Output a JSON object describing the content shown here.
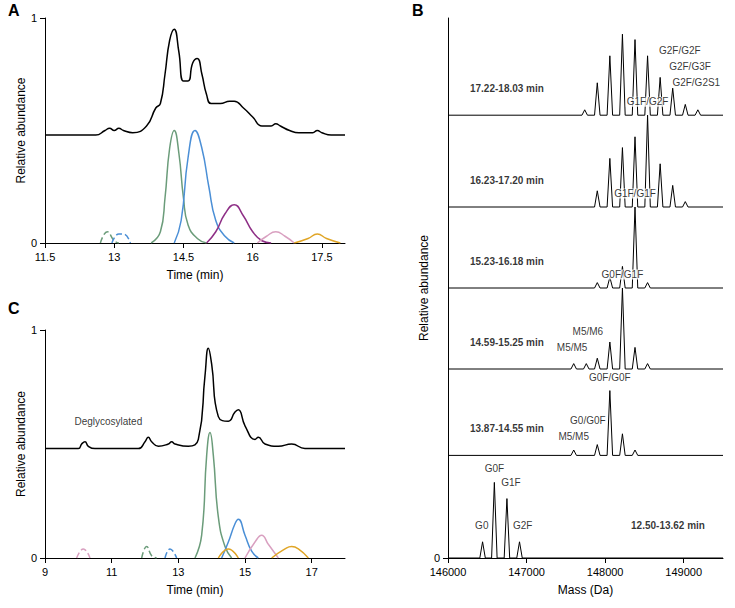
{
  "chart_data": [
    {
      "type": "line",
      "panel": "A",
      "x_label": "Time (min)",
      "y_label": "Relative abundance",
      "xlim": [
        11.5,
        18
      ],
      "xticks": [
        11.5,
        13,
        14.5,
        16,
        17.5
      ],
      "ylim": [
        0,
        1
      ],
      "yticks": [
        0,
        1
      ],
      "grid": false,
      "series": [
        {
          "color": "#000000",
          "line_style": "solid",
          "x": [
            11.5,
            12.0,
            12.6,
            12.8,
            12.9,
            13.0,
            13.1,
            13.2,
            13.4,
            13.7,
            13.9,
            14.0,
            14.1,
            14.2,
            14.3,
            14.4,
            14.5,
            14.6,
            14.7,
            14.8,
            14.9,
            15.0,
            15.1,
            15.3,
            15.5,
            15.6,
            15.8,
            16.0,
            16.2,
            16.4,
            16.5,
            16.6,
            16.8,
            17.0,
            17.3,
            17.4,
            17.5,
            17.7,
            18.0
          ],
          "values": [
            0.48,
            0.48,
            0.48,
            0.5,
            0.51,
            0.5,
            0.51,
            0.5,
            0.49,
            0.52,
            0.6,
            0.62,
            0.75,
            0.9,
            0.95,
            0.85,
            0.72,
            0.72,
            0.8,
            0.82,
            0.75,
            0.66,
            0.62,
            0.62,
            0.63,
            0.63,
            0.6,
            0.56,
            0.52,
            0.52,
            0.53,
            0.52,
            0.5,
            0.49,
            0.49,
            0.5,
            0.49,
            0.48,
            0.48
          ]
        },
        {
          "color": "#6b9c7a",
          "line_style": "solid",
          "x": [
            13.8,
            14.0,
            14.1,
            14.2,
            14.3,
            14.4,
            14.5,
            14.6,
            14.8,
            15.0
          ],
          "values": [
            0,
            0.05,
            0.2,
            0.42,
            0.5,
            0.4,
            0.2,
            0.08,
            0.02,
            0
          ]
        },
        {
          "color": "#4b8fd6",
          "line_style": "solid",
          "x": [
            14.3,
            14.45,
            14.6,
            14.75,
            14.9,
            15.05,
            15.2,
            15.4,
            15.6
          ],
          "values": [
            0,
            0.1,
            0.38,
            0.5,
            0.42,
            0.25,
            0.1,
            0.03,
            0
          ]
        },
        {
          "color": "#8e2f86",
          "line_style": "solid",
          "x": [
            15.0,
            15.2,
            15.4,
            15.6,
            15.8,
            16.0,
            16.2,
            16.4
          ],
          "values": [
            0,
            0.05,
            0.13,
            0.17,
            0.12,
            0.05,
            0.01,
            0
          ]
        },
        {
          "color": "#d9a0c0",
          "line_style": "solid",
          "x": [
            16.1,
            16.3,
            16.5,
            16.7,
            16.9
          ],
          "values": [
            0,
            0.03,
            0.05,
            0.03,
            0
          ]
        },
        {
          "color": "#e0a526",
          "line_style": "solid",
          "x": [
            16.9,
            17.2,
            17.4,
            17.6,
            17.9
          ],
          "values": [
            0,
            0.02,
            0.04,
            0.02,
            0
          ]
        },
        {
          "color": "#6b9c7a",
          "line_style": "dashed",
          "x": [
            12.7,
            12.85,
            13.0,
            13.1
          ],
          "values": [
            0,
            0.05,
            0.01,
            0
          ]
        },
        {
          "color": "#4b8fd6",
          "line_style": "dashed",
          "x": [
            12.95,
            13.1,
            13.2,
            13.35
          ],
          "values": [
            0,
            0.04,
            0.04,
            0
          ]
        }
      ]
    },
    {
      "type": "spectrum",
      "panel": "B",
      "x_label": "Mass (Da)",
      "y_label": "Relative abundance",
      "xlim": [
        146000,
        149500
      ],
      "xticks": [
        146000,
        147000,
        148000,
        149000
      ],
      "ylim": [
        0,
        1
      ],
      "yticks": [
        0
      ],
      "grid": false,
      "series": [
        {
          "label": "12.50-13.62 min",
          "label_x": 148800,
          "label_y": 0.06,
          "color": "#000000",
          "baseline": 0,
          "peaks": [
            [
              146440,
              0.03
            ],
            [
              146590,
              0.14
            ],
            [
              146750,
              0.11
            ],
            [
              146910,
              0.03
            ]
          ],
          "annotations": [
            {
              "text": "G0",
              "x": 146430,
              "y": 0.06
            },
            {
              "text": "G0F",
              "x": 146590,
              "y": 0.165
            },
            {
              "text": "G1F",
              "x": 146800,
              "y": 0.14
            },
            {
              "text": "G2F",
              "x": 146950,
              "y": 0.06
            }
          ]
        },
        {
          "label": "13.87-14.55 min",
          "label_x": 146750,
          "label_y": 0.24,
          "color": "#000000",
          "baseline": 0.19,
          "peaks": [
            [
              147600,
              0.2
            ],
            [
              147900,
              0.21
            ],
            [
              148060,
              0.31
            ],
            [
              148220,
              0.23
            ],
            [
              148380,
              0.2
            ]
          ],
          "annotations": [
            {
              "text": "M5/M5",
              "x": 147600,
              "y": 0.225
            },
            {
              "text": "G0/G0F",
              "x": 147780,
              "y": 0.255
            },
            {
              "text": "G0F/G0F",
              "x": 148060,
              "y": 0.335
            }
          ]
        },
        {
          "label": "14.59-15.25 min",
          "label_x": 146750,
          "label_y": 0.4,
          "color": "#000000",
          "baseline": 0.35,
          "peaks": [
            [
              147600,
              0.36
            ],
            [
              147760,
              0.36
            ],
            [
              147900,
              0.37
            ],
            [
              148060,
              0.4
            ],
            [
              148220,
              0.5
            ],
            [
              148380,
              0.39
            ],
            [
              148540,
              0.36
            ]
          ],
          "annotations": [
            {
              "text": "M5/M5",
              "x": 147580,
              "y": 0.39
            },
            {
              "text": "M5/M6",
              "x": 147780,
              "y": 0.42
            },
            {
              "text": "G0F/G1F",
              "x": 148220,
              "y": 0.525
            }
          ]
        },
        {
          "label": "15.23-16.18 min",
          "label_x": 146750,
          "label_y": 0.55,
          "color": "#000000",
          "baseline": 0.5,
          "peaks": [
            [
              147900,
              0.51
            ],
            [
              148060,
              0.52
            ],
            [
              148220,
              0.54
            ],
            [
              148380,
              0.65
            ],
            [
              148540,
              0.51
            ]
          ],
          "annotations": [
            {
              "text": "G1F/G1F",
              "x": 148380,
              "y": 0.675
            }
          ]
        },
        {
          "label": "16.23-17.20 min",
          "label_x": 146750,
          "label_y": 0.7,
          "color": "#000000",
          "baseline": 0.65,
          "peaks": [
            [
              147900,
              0.68
            ],
            [
              148060,
              0.74
            ],
            [
              148220,
              0.76
            ],
            [
              148380,
              0.78
            ],
            [
              148540,
              0.82
            ],
            [
              148700,
              0.73
            ],
            [
              148860,
              0.69
            ],
            [
              149020,
              0.66
            ]
          ],
          "annotations": [
            {
              "text": "G1F/G2F",
              "x": 148540,
              "y": 0.845
            }
          ]
        },
        {
          "label": "17.22-18.03 min",
          "label_x": 146750,
          "label_y": 0.87,
          "color": "#000000",
          "baseline": 0.82,
          "peaks": [
            [
              147740,
              0.83
            ],
            [
              147900,
              0.88
            ],
            [
              148060,
              0.93
            ],
            [
              148220,
              0.97
            ],
            [
              148380,
              0.96
            ],
            [
              148540,
              0.93
            ],
            [
              148700,
              0.89
            ],
            [
              148860,
              0.87
            ],
            [
              149020,
              0.84
            ],
            [
              149180,
              0.83
            ]
          ],
          "annotations": [
            {
              "text": "G2F/G2F",
              "x": 148950,
              "y": 0.94
            },
            {
              "text": "G2F/G3F",
              "x": 149080,
              "y": 0.91
            },
            {
              "text": "G2F/G2S1",
              "x": 149160,
              "y": 0.88
            }
          ]
        }
      ]
    },
    {
      "type": "line",
      "panel": "C",
      "x_label": "Time (min)",
      "y_label": "Relative abundance",
      "xlim": [
        9,
        18
      ],
      "xticks": [
        9,
        11,
        13,
        15,
        17
      ],
      "ylim": [
        0,
        1
      ],
      "yticks": [
        0,
        1
      ],
      "grid": false,
      "annotations": [
        {
          "text": "Deglycosylated",
          "x": 10.9,
          "y": 0.6
        }
      ],
      "series": [
        {
          "color": "#000000",
          "line_style": "solid",
          "x": [
            9,
            10.0,
            10.1,
            10.2,
            10.3,
            10.5,
            11.8,
            12.0,
            12.1,
            12.2,
            12.4,
            12.7,
            12.8,
            12.9,
            13.3,
            13.6,
            13.8,
            13.9,
            14.0,
            14.2,
            14.5,
            14.7,
            14.8,
            15.0,
            15.3,
            15.4,
            15.6,
            16.0,
            16.4,
            16.8,
            18
          ],
          "values": [
            0.48,
            0.48,
            0.5,
            0.51,
            0.49,
            0.48,
            0.48,
            0.51,
            0.53,
            0.51,
            0.49,
            0.5,
            0.51,
            0.5,
            0.49,
            0.52,
            0.8,
            0.92,
            0.85,
            0.62,
            0.6,
            0.64,
            0.65,
            0.58,
            0.52,
            0.53,
            0.5,
            0.49,
            0.5,
            0.48,
            0.48
          ]
        },
        {
          "color": "#6b9c7a",
          "line_style": "solid",
          "x": [
            13.5,
            13.7,
            13.85,
            13.95,
            14.05,
            14.2,
            14.4,
            14.6
          ],
          "values": [
            0,
            0.1,
            0.45,
            0.55,
            0.45,
            0.18,
            0.05,
            0
          ]
        },
        {
          "color": "#4b8fd6",
          "line_style": "solid",
          "x": [
            14.3,
            14.5,
            14.7,
            14.8,
            15.0,
            15.2,
            15.4
          ],
          "values": [
            0,
            0.07,
            0.15,
            0.17,
            0.1,
            0.03,
            0
          ]
        },
        {
          "color": "#e0a526",
          "line_style": "solid",
          "x": [
            14.2,
            14.5,
            14.8
          ],
          "values": [
            0,
            0.04,
            0
          ]
        },
        {
          "color": "#d9a0c0",
          "line_style": "solid",
          "x": [
            15.0,
            15.3,
            15.5,
            15.7,
            16.0
          ],
          "values": [
            0,
            0.07,
            0.1,
            0.06,
            0
          ]
        },
        {
          "color": "#e0a526",
          "line_style": "solid",
          "x": [
            15.8,
            16.2,
            16.4,
            16.6,
            16.9
          ],
          "values": [
            0,
            0.04,
            0.05,
            0.04,
            0
          ]
        },
        {
          "color": "#d9a0c0",
          "line_style": "dashed",
          "x": [
            9.95,
            10.15,
            10.35
          ],
          "values": [
            0,
            0.04,
            0
          ]
        },
        {
          "color": "#6b9c7a",
          "line_style": "dashed",
          "x": [
            11.9,
            12.05,
            12.2,
            12.35
          ],
          "values": [
            0,
            0.05,
            0.01,
            0
          ]
        },
        {
          "color": "#4b8fd6",
          "line_style": "dashed",
          "x": [
            12.6,
            12.75,
            12.95
          ],
          "values": [
            0,
            0.04,
            0
          ]
        }
      ]
    }
  ]
}
